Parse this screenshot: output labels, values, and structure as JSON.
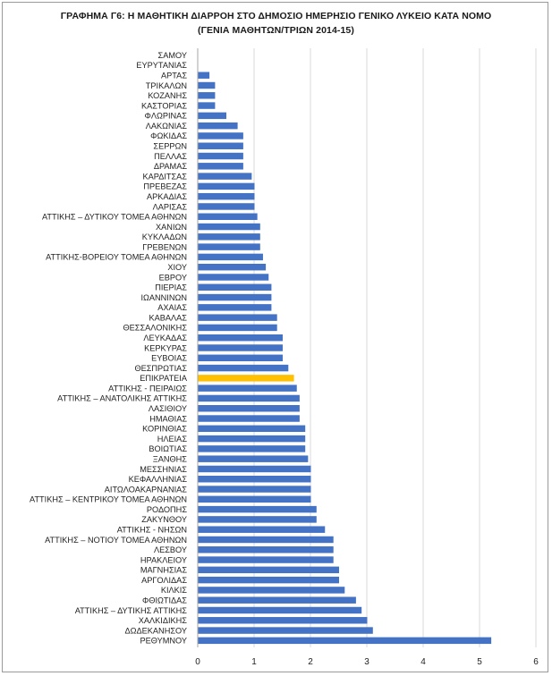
{
  "chart_data": {
    "type": "bar",
    "orientation": "horizontal",
    "title_line1": "ΓΡΑΦΗΜΑ Γ6: Η ΜΑΘΗΤΙΚΗ ΔΙΑΡΡΟΗ ΣΤΟ ΔΗΜΟΣΙΟ ΗΜΕΡΗΣΙΟ ΓΕΝΙΚΟ ΛΥΚΕΙΟ ΚΑΤΑ ΝΟΜΟ",
    "title_line2": "(ΓΕΝΙΑ ΜΑΘΗΤΩΝ/ΤΡΙΩΝ 2014-15)",
    "xlim": [
      0,
      6
    ],
    "ticks": [
      "0",
      "1",
      "2",
      "3",
      "4",
      "5",
      "6"
    ],
    "grid": true,
    "colors": {
      "bar": "#4472c4",
      "highlight": "#ffc000",
      "grid": "#d9d9d9"
    },
    "highlight_category": "ΕΠΙΚΡΑΤΕΙΑ",
    "categories": [
      "ΣΑΜΟΥ",
      "ΕΥΡΥΤΑΝΙΑΣ",
      "ΑΡΤΑΣ",
      "ΤΡΙΚΑΛΩΝ",
      "ΚΟΖΑΝΗΣ",
      "ΚΑΣΤΟΡΙΑΣ",
      "ΦΛΩΡΙΝΑΣ",
      "ΛΑΚΩΝΙΑΣ",
      "ΦΩΚΙΔΑΣ",
      "ΣΕΡΡΩΝ",
      "ΠΕΛΛΑΣ",
      "ΔΡΑΜΑΣ",
      "ΚΑΡΔΙΤΣΑΣ",
      "ΠΡΕΒΕΖΑΣ",
      "ΑΡΚΑΔΙΑΣ",
      "ΛΑΡΙΣΑΣ",
      "ΑΤΤΙΚΗΣ – ΔΥΤΙΚΟΥ ΤΟΜΕΑ ΑΘΗΝΩΝ",
      "ΧΑΝΙΩΝ",
      "ΚΥΚΛΑΔΩΝ",
      "ΓΡΕΒΕΝΩΝ",
      "ΑΤΤΙΚΗΣ-ΒΟΡΕΙΟΥ ΤΟΜΕΑ ΑΘΗΝΩΝ",
      "ΧΙΟΥ",
      "ΕΒΡΟΥ",
      "ΠΙΕΡΙΑΣ",
      "ΙΩΑΝΝΙΝΩΝ",
      "ΑΧΑΙΑΣ",
      "ΚΑΒΑΛΑΣ",
      "ΘΕΣΣΑΛΟΝΙΚΗΣ",
      "ΛΕΥΚΑΔΑΣ",
      "ΚΕΡΚΥΡΑΣ",
      "ΕΥΒΟΙΑΣ",
      "ΘΕΣΠΡΩΤΙΑΣ",
      "ΕΠΙΚΡΑΤΕΙΑ",
      "ΑΤΤΙΚΗΣ - ΠΕΙΡΑΙΩΣ",
      "ΑΤΤΙΚΗΣ – ΑΝΑΤΟΛΙΚΗΣ ΑΤΤΙΚΗΣ",
      "ΛΑΣΙΘΙΟΥ",
      "ΗΜΑΘΙΑΣ",
      "ΚΟΡΙΝΘΙΑΣ",
      "ΗΛΕΙΑΣ",
      "ΒΟΙΩΤΙΑΣ",
      "ΞΑΝΘΗΣ",
      "ΜΕΣΣΗΝΙΑΣ",
      "ΚΕΦΑΛΛΗΝΙΑΣ",
      "ΑΙΤΩΛΟΑΚΑΡΝΑΝΙΑΣ",
      "ΑΤΤΙΚΗΣ – ΚΕΝΤΡΙΚΟΥ ΤΟΜΕΑ ΑΘΗΝΩΝ",
      "ΡΟΔΟΠΗΣ",
      "ΖΑΚΥΝΘΟΥ",
      "ΑΤΤΙΚΗΣ - ΝΗΣΩΝ",
      "ΑΤΤΙΚΗΣ – ΝΟΤΙΟΥ ΤΟΜΕΑ ΑΘΗΝΩΝ",
      "ΛΕΣΒΟΥ",
      "ΗΡΑΚΛΕΙΟΥ",
      "ΜΑΓΝΗΣΙΑΣ",
      "ΑΡΓΟΛΙΔΑΣ",
      "ΚΙΛΚΙΣ",
      "ΦΘΙΩΤΙΔΑΣ",
      "ΑΤΤΙΚΗΣ – ΔΥΤΙΚΗΣ ΑΤΤΙΚΗΣ",
      "ΧΑΛΚΙΔΙΚΗΣ",
      "ΔΩΔΕΚΑΝΗΣΟΥ",
      "ΡΕΘΥΜΝΟΥ"
    ],
    "values": [
      0,
      0,
      0.2,
      0.3,
      0.3,
      0.3,
      0.5,
      0.7,
      0.8,
      0.8,
      0.8,
      0.8,
      0.95,
      1.0,
      1.0,
      1.0,
      1.05,
      1.1,
      1.1,
      1.1,
      1.15,
      1.2,
      1.25,
      1.3,
      1.3,
      1.3,
      1.4,
      1.4,
      1.5,
      1.5,
      1.5,
      1.6,
      1.7,
      1.75,
      1.8,
      1.8,
      1.8,
      1.9,
      1.9,
      1.9,
      1.95,
      2.0,
      2.0,
      2.0,
      2.0,
      2.1,
      2.1,
      2.25,
      2.4,
      2.4,
      2.4,
      2.5,
      2.5,
      2.6,
      2.8,
      2.9,
      3.0,
      3.1,
      5.2
    ]
  }
}
